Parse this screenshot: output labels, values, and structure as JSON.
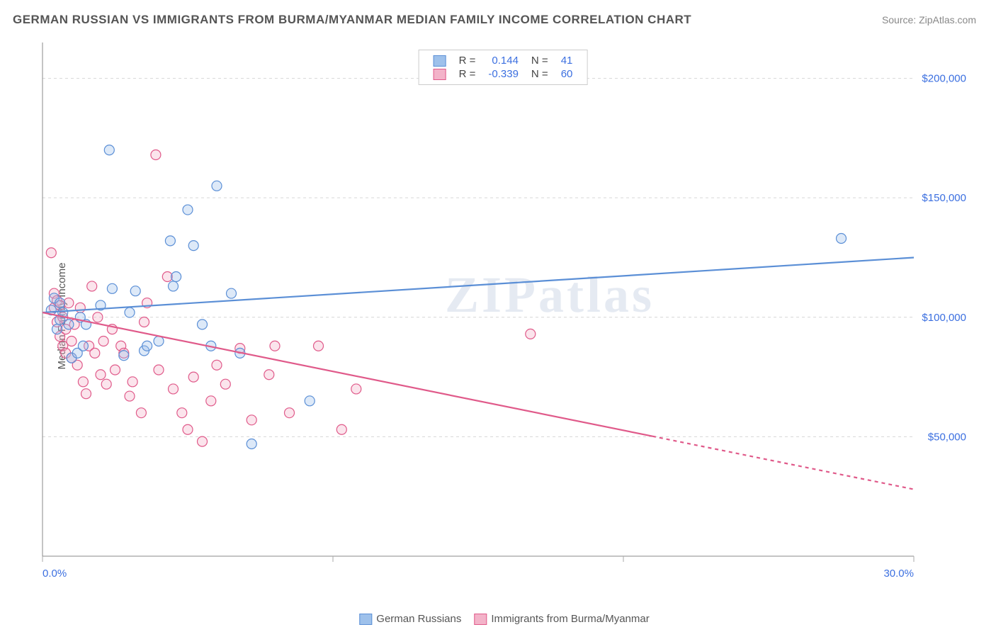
{
  "title": "GERMAN RUSSIAN VS IMMIGRANTS FROM BURMA/MYANMAR MEDIAN FAMILY INCOME CORRELATION CHART",
  "source": "Source: ZipAtlas.com",
  "watermark": "ZIPatlas",
  "ylabel": "Median Family Income",
  "chart": {
    "type": "scatter",
    "xlim": [
      0,
      30
    ],
    "ylim": [
      0,
      215000
    ],
    "x_ticks": [
      0,
      10,
      20,
      30
    ],
    "x_tick_labels": [
      "0.0%",
      "",
      "",
      "30.0%"
    ],
    "y_ticks": [
      50000,
      100000,
      150000,
      200000
    ],
    "y_tick_labels": [
      "$50,000",
      "$100,000",
      "$150,000",
      "$200,000"
    ],
    "grid_color": "#bbbbbb",
    "axis_color": "#888888",
    "background_color": "#ffffff",
    "tick_label_color": "#3b6fe0",
    "marker_radius": 7,
    "marker_stroke_width": 1.2,
    "marker_fill_opacity": 0.35,
    "series": [
      {
        "name": "German Russians",
        "color_stroke": "#5b8fd6",
        "color_fill": "#9ec1eb",
        "R": "0.144",
        "N": "41",
        "trend": {
          "x1": 0,
          "y1": 102000,
          "x2": 30,
          "y2": 125000,
          "solid_until_x": 30,
          "width": 2.2
        },
        "points": [
          [
            0.3,
            103000
          ],
          [
            0.4,
            108000
          ],
          [
            0.5,
            95000
          ],
          [
            0.6,
            99000
          ],
          [
            0.6,
            106000
          ],
          [
            0.7,
            102000
          ],
          [
            0.9,
            97000
          ],
          [
            1.0,
            83000
          ],
          [
            1.2,
            85000
          ],
          [
            1.3,
            100000
          ],
          [
            1.4,
            88000
          ],
          [
            1.5,
            97000
          ],
          [
            2.0,
            105000
          ],
          [
            2.3,
            170000
          ],
          [
            2.4,
            112000
          ],
          [
            2.8,
            84000
          ],
          [
            3.0,
            102000
          ],
          [
            3.2,
            111000
          ],
          [
            3.5,
            86000
          ],
          [
            3.6,
            88000
          ],
          [
            4.0,
            90000
          ],
          [
            4.4,
            132000
          ],
          [
            4.5,
            113000
          ],
          [
            4.6,
            117000
          ],
          [
            5.0,
            145000
          ],
          [
            5.2,
            130000
          ],
          [
            5.5,
            97000
          ],
          [
            5.8,
            88000
          ],
          [
            6.0,
            155000
          ],
          [
            6.5,
            110000
          ],
          [
            6.8,
            85000
          ],
          [
            7.2,
            47000
          ],
          [
            9.2,
            65000
          ],
          [
            27.5,
            133000
          ]
        ]
      },
      {
        "name": "Immigrants from Burma/Myanmar",
        "color_stroke": "#e05a8a",
        "color_fill": "#f3b3c9",
        "R": "-0.339",
        "N": "60",
        "trend": {
          "x1": 0,
          "y1": 102000,
          "x2": 30,
          "y2": 28000,
          "solid_until_x": 21,
          "width": 2.2
        },
        "points": [
          [
            0.3,
            127000
          ],
          [
            0.4,
            110000
          ],
          [
            0.4,
            104000
          ],
          [
            0.5,
            107000
          ],
          [
            0.5,
            98000
          ],
          [
            0.6,
            105000
          ],
          [
            0.6,
            92000
          ],
          [
            0.7,
            100000
          ],
          [
            0.7,
            88000
          ],
          [
            0.8,
            95000
          ],
          [
            0.8,
            85000
          ],
          [
            0.9,
            106000
          ],
          [
            1.0,
            90000
          ],
          [
            1.0,
            83000
          ],
          [
            1.1,
            97000
          ],
          [
            1.2,
            80000
          ],
          [
            1.3,
            104000
          ],
          [
            1.4,
            73000
          ],
          [
            1.5,
            68000
          ],
          [
            1.6,
            88000
          ],
          [
            1.7,
            113000
          ],
          [
            1.8,
            85000
          ],
          [
            1.9,
            100000
          ],
          [
            2.0,
            76000
          ],
          [
            2.1,
            90000
          ],
          [
            2.2,
            72000
          ],
          [
            2.4,
            95000
          ],
          [
            2.5,
            78000
          ],
          [
            2.7,
            88000
          ],
          [
            2.8,
            85000
          ],
          [
            3.0,
            67000
          ],
          [
            3.1,
            73000
          ],
          [
            3.4,
            60000
          ],
          [
            3.5,
            98000
          ],
          [
            3.6,
            106000
          ],
          [
            3.9,
            168000
          ],
          [
            4.0,
            78000
          ],
          [
            4.3,
            117000
          ],
          [
            4.5,
            70000
          ],
          [
            4.8,
            60000
          ],
          [
            5.0,
            53000
          ],
          [
            5.2,
            75000
          ],
          [
            5.5,
            48000
          ],
          [
            5.8,
            65000
          ],
          [
            6.0,
            80000
          ],
          [
            6.3,
            72000
          ],
          [
            6.8,
            87000
          ],
          [
            7.2,
            57000
          ],
          [
            7.8,
            76000
          ],
          [
            8.0,
            88000
          ],
          [
            8.5,
            60000
          ],
          [
            9.5,
            88000
          ],
          [
            10.3,
            53000
          ],
          [
            10.8,
            70000
          ],
          [
            16.8,
            93000
          ]
        ]
      }
    ]
  },
  "legend_top": {
    "rows": [
      {
        "sw_fill": "#9ec1eb",
        "sw_stroke": "#5b8fd6",
        "r_label": "R =",
        "r_val": "0.144",
        "n_label": "N =",
        "n_val": "41"
      },
      {
        "sw_fill": "#f3b3c9",
        "sw_stroke": "#e05a8a",
        "r_label": "R =",
        "r_val": "-0.339",
        "n_label": "N =",
        "n_val": "60"
      }
    ]
  },
  "legend_bottom": {
    "items": [
      {
        "sw_fill": "#9ec1eb",
        "sw_stroke": "#5b8fd6",
        "label": "German Russians"
      },
      {
        "sw_fill": "#f3b3c9",
        "sw_stroke": "#e05a8a",
        "label": "Immigrants from Burma/Myanmar"
      }
    ]
  }
}
